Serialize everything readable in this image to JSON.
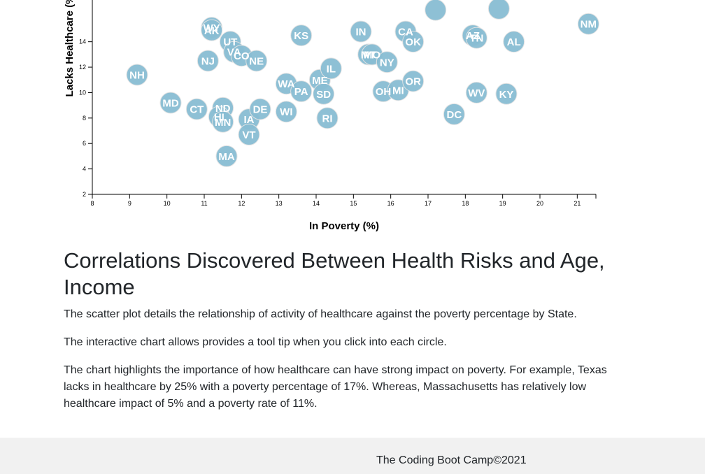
{
  "chart_data": {
    "type": "scatter",
    "xlabel": "In Poverty (%)",
    "ylabel": "Lacks Healthcare (%)",
    "xlim": [
      8,
      21.5
    ],
    "ylim": [
      2,
      17.5
    ],
    "xticks": [
      8,
      9,
      10,
      11,
      12,
      13,
      14,
      15,
      16,
      17,
      18,
      19,
      20,
      21
    ],
    "yticks": [
      2,
      4,
      6,
      8,
      10,
      12,
      14
    ],
    "points": [
      {
        "abbr": "NH",
        "x": 9.2,
        "y": 11.4
      },
      {
        "abbr": "MD",
        "x": 10.1,
        "y": 9.2
      },
      {
        "abbr": "CT",
        "x": 10.8,
        "y": 8.7
      },
      {
        "abbr": "NJ",
        "x": 11.1,
        "y": 12.5
      },
      {
        "abbr": "WY",
        "x": 11.2,
        "y": 15.1
      },
      {
        "abbr": "AK",
        "x": 11.2,
        "y": 14.9
      },
      {
        "abbr": "UT",
        "x": 11.7,
        "y": 14.0
      },
      {
        "abbr": "VA",
        "x": 11.8,
        "y": 13.2
      },
      {
        "abbr": "CO",
        "x": 12.0,
        "y": 12.9
      },
      {
        "abbr": "NE",
        "x": 12.4,
        "y": 12.5
      },
      {
        "abbr": "ND",
        "x": 11.5,
        "y": 8.8
      },
      {
        "abbr": "HI",
        "x": 11.4,
        "y": 8.1
      },
      {
        "abbr": "MN",
        "x": 11.5,
        "y": 7.7
      },
      {
        "abbr": "MA",
        "x": 11.6,
        "y": 5.0
      },
      {
        "abbr": "IA",
        "x": 12.2,
        "y": 7.9
      },
      {
        "abbr": "VT",
        "x": 12.2,
        "y": 6.7
      },
      {
        "abbr": "DE",
        "x": 12.5,
        "y": 8.7
      },
      {
        "abbr": "WA",
        "x": 13.2,
        "y": 10.7
      },
      {
        "abbr": "WI",
        "x": 13.2,
        "y": 8.5
      },
      {
        "abbr": "PA",
        "x": 13.6,
        "y": 10.1
      },
      {
        "abbr": "KS",
        "x": 13.6,
        "y": 14.5
      },
      {
        "abbr": "ME",
        "x": 14.1,
        "y": 11.0
      },
      {
        "abbr": "SD",
        "x": 14.2,
        "y": 9.9
      },
      {
        "abbr": "IL",
        "x": 14.4,
        "y": 11.9
      },
      {
        "abbr": "RI",
        "x": 14.3,
        "y": 8.0
      },
      {
        "abbr": "IN",
        "x": 15.2,
        "y": 14.8
      },
      {
        "abbr": "MT",
        "x": 15.4,
        "y": 13.0
      },
      {
        "abbr": "MO",
        "x": 15.5,
        "y": 13.0
      },
      {
        "abbr": "NY",
        "x": 15.9,
        "y": 12.4
      },
      {
        "abbr": "OH",
        "x": 15.8,
        "y": 10.1
      },
      {
        "abbr": "MI",
        "x": 16.2,
        "y": 10.2
      },
      {
        "abbr": "CA",
        "x": 16.4,
        "y": 14.8
      },
      {
        "abbr": "OK",
        "x": 16.6,
        "y": 14.0
      },
      {
        "abbr": "OR",
        "x": 16.6,
        "y": 10.9
      },
      {
        "abbr": "DC",
        "x": 17.7,
        "y": 8.3
      },
      {
        "abbr": "AZ",
        "x": 18.2,
        "y": 14.5
      },
      {
        "abbr": "TN",
        "x": 18.3,
        "y": 14.3
      },
      {
        "abbr": "WV",
        "x": 18.3,
        "y": 10.0
      },
      {
        "abbr": "AL",
        "x": 19.3,
        "y": 14.0
      },
      {
        "abbr": "KY",
        "x": 19.1,
        "y": 9.9
      },
      {
        "abbr": "NM",
        "x": 21.3,
        "y": 15.4
      }
    ],
    "partial_points": [
      {
        "x": 17.2,
        "y": 16.5
      },
      {
        "x": 18.9,
        "y": 16.6
      }
    ]
  },
  "article": {
    "title": "Correlations Discovered Between Health Risks and Age, Income",
    "paragraphs": [
      "The scatter plot details the relationship of activity of healthcare against the poverty percentage by State.",
      "The interactive chart allows provides a tool tip when you click into each circle.",
      "The chart highlights the importance of how healthcare can have strong impact on poverty. For example, Texas lacks in healthcare by 25% with a poverty percentage of 17%. Whereas, Massachusetts has relatively low healthcare impact of 5% and a poverty rate of 11%."
    ]
  },
  "footer": {
    "text": "The Coding Boot Camp©2021"
  },
  "colors": {
    "circle": "#89bdd3",
    "footer_bg": "#f1f1f1"
  }
}
